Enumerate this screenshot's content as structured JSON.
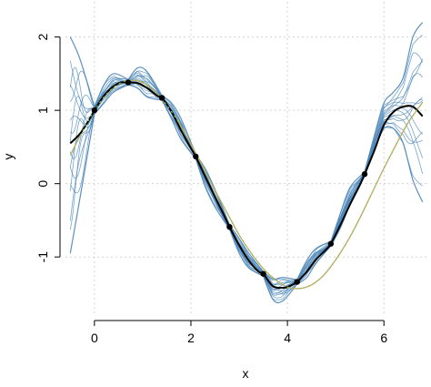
{
  "chart_data": {
    "type": "line",
    "title": "",
    "xlabel": "x",
    "ylabel": "y",
    "xlim": [
      -0.6,
      6.9
    ],
    "ylim": [
      -1.78,
      2.48
    ],
    "x_ticks": [
      0,
      2,
      4,
      6
    ],
    "x_tick_labels": [
      "0",
      "2",
      "4",
      "6"
    ],
    "y_ticks": [
      -1,
      0,
      1,
      2
    ],
    "y_tick_labels": [
      "-1",
      "0",
      "1",
      "2"
    ],
    "grid": true,
    "legend": "none",
    "colors": {
      "samples": "#4a85b8",
      "posterior_mean": "#000000",
      "true_function": "#c8a070",
      "green_dashed": "#7ccf3a",
      "observations": "#000000"
    },
    "observations": {
      "x": [
        0.0,
        0.7,
        1.4,
        2.1,
        2.8,
        3.5,
        4.2,
        4.9,
        5.6
      ],
      "y": [
        1.0,
        1.38,
        1.17,
        0.37,
        -0.59,
        -1.23,
        -1.34,
        -0.82,
        0.13
      ]
    },
    "sample_bands": [
      {
        "x": [
          -0.5,
          -0.3,
          0.0
        ],
        "lower": [
          -0.95,
          -0.2,
          0.95
        ],
        "upper": [
          2.0,
          1.7,
          1.05
        ]
      },
      {
        "x": [
          0.0,
          0.2,
          0.4,
          0.7
        ],
        "lower": [
          0.95,
          1.1,
          1.25,
          1.35
        ],
        "upper": [
          1.05,
          1.35,
          1.5,
          1.42
        ]
      },
      {
        "x": [
          0.7,
          0.9,
          1.1,
          1.4
        ],
        "lower": [
          1.35,
          1.3,
          1.18,
          1.14
        ],
        "upper": [
          1.42,
          1.58,
          1.52,
          1.2
        ]
      },
      {
        "x": [
          1.4,
          1.6,
          1.8,
          2.1
        ],
        "lower": [
          1.14,
          0.88,
          0.6,
          0.34
        ],
        "upper": [
          1.2,
          1.1,
          0.88,
          0.4
        ]
      },
      {
        "x": [
          2.1,
          2.3,
          2.5,
          2.8
        ],
        "lower": [
          0.34,
          -0.05,
          -0.32,
          -0.62
        ],
        "upper": [
          0.4,
          0.2,
          -0.08,
          -0.56
        ]
      },
      {
        "x": [
          2.8,
          3.0,
          3.2,
          3.5
        ],
        "lower": [
          -0.62,
          -0.95,
          -1.15,
          -1.26
        ],
        "upper": [
          -0.56,
          -0.75,
          -0.95,
          -1.2
        ]
      },
      {
        "x": [
          3.5,
          3.7,
          3.9,
          4.2
        ],
        "lower": [
          -1.26,
          -1.58,
          -1.6,
          -1.37
        ],
        "upper": [
          -1.2,
          -1.3,
          -1.28,
          -1.31
        ]
      },
      {
        "x": [
          4.2,
          4.4,
          4.6,
          4.9
        ],
        "lower": [
          -1.37,
          -1.28,
          -1.08,
          -0.85
        ],
        "upper": [
          -1.31,
          -1.05,
          -0.88,
          -0.79
        ]
      },
      {
        "x": [
          4.9,
          5.1,
          5.3,
          5.6
        ],
        "lower": [
          -0.85,
          -0.6,
          -0.28,
          0.1
        ],
        "upper": [
          -0.79,
          -0.4,
          -0.05,
          0.16
        ]
      },
      {
        "x": [
          5.6,
          5.8,
          6.0,
          6.2,
          6.4,
          6.6,
          6.8
        ],
        "lower": [
          0.1,
          0.45,
          0.75,
          0.75,
          0.55,
          0.05,
          -0.25
        ],
        "upper": [
          0.16,
          0.65,
          1.1,
          1.25,
          1.45,
          2.0,
          2.2
        ]
      }
    ],
    "series": [
      {
        "x": [
          -0.5,
          -0.3,
          -0.1,
          0.0,
          0.2,
          0.4,
          0.55,
          0.7,
          0.9,
          1.1,
          1.3,
          1.4,
          1.6,
          1.8,
          2.0,
          2.1,
          2.3,
          2.5,
          2.7,
          2.8,
          3.0,
          3.2,
          3.4,
          3.5,
          3.7,
          3.9,
          4.0,
          4.2,
          4.4,
          4.6,
          4.8,
          4.9,
          5.1,
          5.3,
          5.5,
          5.6,
          5.8,
          6.0,
          6.2,
          6.4,
          6.6,
          6.8
        ],
        "y": [
          0.55,
          0.68,
          0.88,
          1.0,
          1.2,
          1.33,
          1.38,
          1.38,
          1.37,
          1.3,
          1.2,
          1.17,
          0.98,
          0.72,
          0.48,
          0.37,
          0.09,
          -0.18,
          -0.45,
          -0.59,
          -0.84,
          -1.05,
          -1.2,
          -1.23,
          -1.4,
          -1.42,
          -1.41,
          -1.34,
          -1.2,
          -1.03,
          -0.9,
          -0.82,
          -0.56,
          -0.28,
          -0.02,
          0.13,
          0.45,
          0.8,
          0.98,
          1.05,
          1.05,
          0.92
        ]
      },
      {
        "x": [
          -0.5,
          -0.25,
          0.0,
          0.25,
          0.5,
          0.75,
          1.0,
          1.25,
          1.5,
          1.75,
          2.0,
          2.25,
          2.5,
          2.75,
          3.0,
          3.25,
          3.5,
          3.75,
          4.0,
          4.25,
          4.5,
          4.75,
          5.0,
          5.25,
          5.5,
          5.75,
          6.0,
          6.25,
          6.5,
          6.8
        ],
        "y": [
          0.39,
          0.71,
          1.0,
          1.22,
          1.36,
          1.41,
          1.38,
          1.26,
          1.07,
          0.83,
          0.54,
          0.23,
          -0.09,
          -0.4,
          -0.7,
          -0.95,
          -1.16,
          -1.31,
          -1.41,
          -1.43,
          -1.38,
          -1.25,
          -1.04,
          -0.78,
          -0.47,
          -0.13,
          0.21,
          0.53,
          0.83,
          1.11
        ]
      }
    ]
  }
}
